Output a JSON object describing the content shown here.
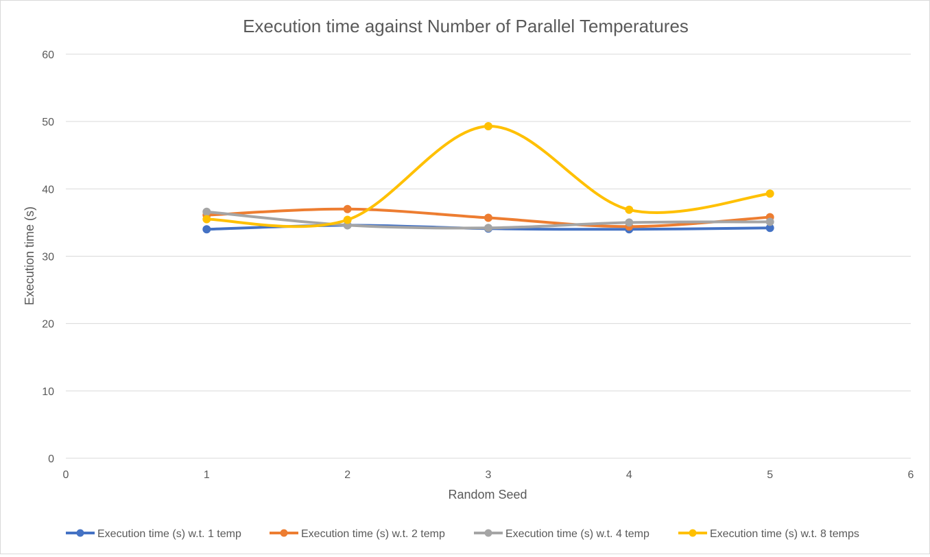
{
  "chart_data": {
    "type": "scatter",
    "title": "Execution time against Number of Parallel Temperatures",
    "xlabel": "Random Seed",
    "ylabel": "Execution time (s)",
    "xlim": [
      0,
      6
    ],
    "ylim": [
      0,
      60
    ],
    "xticks": [
      "0",
      "1",
      "2",
      "3",
      "4",
      "5",
      "6"
    ],
    "yticks": [
      "0",
      "10",
      "20",
      "30",
      "40",
      "50",
      "60"
    ],
    "grid": true,
    "legend_position": "bottom",
    "smooth_lines": true,
    "x": [
      1,
      2,
      3,
      4,
      5
    ],
    "series": [
      {
        "name": "Execution time (s) w.t. 1 temp",
        "color": "#4472C4",
        "values": [
          34.0,
          34.6,
          34.1,
          34.0,
          34.2
        ]
      },
      {
        "name": "Execution time (s) w.t. 2 temp",
        "color": "#ED7D31",
        "values": [
          36.1,
          37.0,
          35.7,
          34.4,
          35.8
        ]
      },
      {
        "name": "Execution time (s) w.t. 4 temp",
        "color": "#A5A5A5",
        "values": [
          36.6,
          34.6,
          34.2,
          35.0,
          35.1
        ]
      },
      {
        "name": "Execution time (s) w.t. 8 temps",
        "color": "#FFC000",
        "values": [
          35.5,
          35.4,
          49.3,
          36.9,
          39.3
        ]
      }
    ]
  }
}
